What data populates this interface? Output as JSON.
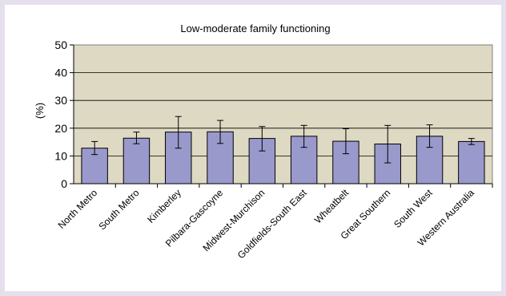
{
  "chart_data": {
    "type": "bar",
    "title": "Low-moderate family functioning",
    "xlabel": "",
    "ylabel": "(%)",
    "ylim": [
      0,
      50
    ],
    "yticks": [
      0,
      10,
      20,
      30,
      40,
      50
    ],
    "grid": true,
    "legend": "none",
    "categories": [
      "North Metro",
      "South Metro",
      "Kimberley",
      "Pilbara-Gascoyne",
      "Midwest-Murchison",
      "Goldfields-South East",
      "Wheatbelt",
      "Great Southern",
      "South West",
      "Western Australia"
    ],
    "series": [
      {
        "values": [
          12.8,
          16.4,
          18.6,
          18.7,
          16.3,
          17.1,
          15.3,
          14.3,
          17.1,
          15.2
        ],
        "error_low": [
          10.5,
          14.4,
          12.8,
          14.5,
          11.8,
          13.1,
          10.8,
          7.5,
          13.1,
          14.1
        ],
        "error_high": [
          15.2,
          18.6,
          24.2,
          22.8,
          20.6,
          21.0,
          19.8,
          21.0,
          21.2,
          16.3
        ]
      }
    ],
    "colors": {
      "bar": "#9999cc",
      "plot_background": "#ddd9c3",
      "frame_background": "#e6e0ec",
      "bar_border": "#000000"
    }
  }
}
